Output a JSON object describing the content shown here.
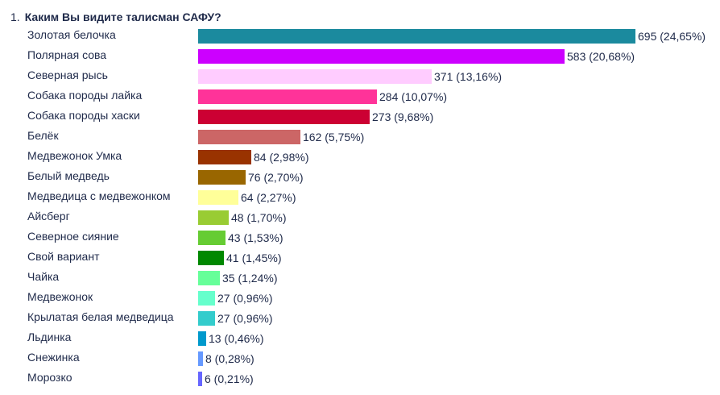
{
  "question": {
    "number": "1.",
    "text": "Каким Вы видите талисман САФУ?"
  },
  "chart_data": {
    "type": "bar",
    "orientation": "horizontal",
    "xlim": [
      0,
      695
    ],
    "categories": [
      "Золотая белочка",
      "Полярная сова",
      "Северная рысь",
      "Собака породы лайка",
      "Собака породы хаски",
      "Белёк",
      "Медвежонок Умка",
      "Белый медведь",
      "Медведица с медвежонком",
      "Айсберг",
      "Северное сияние",
      "Свой вариант",
      "Чайка",
      "Медвежонок",
      "Крылатая белая медведица",
      "Льдинка",
      "Снежинка",
      "Морозко"
    ],
    "values": [
      695,
      583,
      371,
      284,
      273,
      162,
      84,
      76,
      64,
      48,
      43,
      41,
      35,
      27,
      27,
      13,
      8,
      6
    ],
    "labels": [
      "695 (24,65%)",
      "583 (20,68%)",
      "371 (13,16%)",
      "284 (10,07%)",
      "273 (9,68%)",
      "162 (5,75%)",
      "84 (2,98%)",
      "76 (2,70%)",
      "64 (2,27%)",
      "48 (1,70%)",
      "43 (1,53%)",
      "41 (1,45%)",
      "35 (1,24%)",
      "27 (0,96%)",
      "27 (0,96%)",
      "13 (0,46%)",
      "8 (0,28%)",
      "6 (0,21%)"
    ],
    "colors": [
      "#1b8a9e",
      "#cc00ff",
      "#ffccff",
      "#ff3399",
      "#cc0033",
      "#cc6666",
      "#993300",
      "#996600",
      "#ffff99",
      "#99cc33",
      "#66cc33",
      "#008800",
      "#66ff99",
      "#66ffcc",
      "#33cccc",
      "#0099cc",
      "#6699ff",
      "#6666ff"
    ],
    "grid": false,
    "legend": "none"
  }
}
